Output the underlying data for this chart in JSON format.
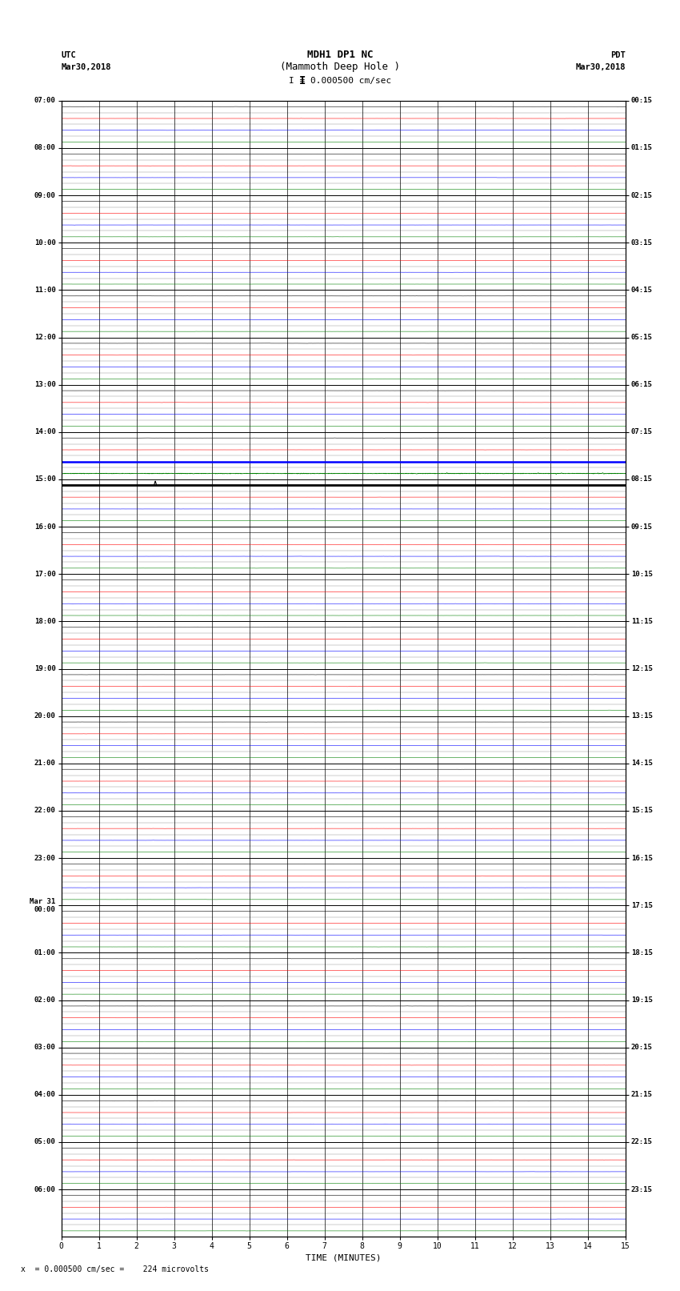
{
  "title_line1": "MDH1 DP1 NC",
  "title_line2": "(Mammoth Deep Hole )",
  "scale_label": "I = 0.000500 cm/sec",
  "left_timezone": "UTC",
  "left_date": "Mar30,2018",
  "right_timezone": "PDT",
  "right_date": "Mar30,2018",
  "xlabel": "TIME (MINUTES)",
  "footer": "x  = 0.000500 cm/sec =    224 microvolts",
  "left_times": [
    "07:00",
    "08:00",
    "09:00",
    "10:00",
    "11:00",
    "12:00",
    "13:00",
    "14:00",
    "15:00",
    "16:00",
    "17:00",
    "18:00",
    "19:00",
    "20:00",
    "21:00",
    "22:00",
    "23:00",
    "Mar 31\n00:00",
    "01:00",
    "02:00",
    "03:00",
    "04:00",
    "05:00",
    "06:00"
  ],
  "right_times": [
    "00:15",
    "01:15",
    "02:15",
    "03:15",
    "04:15",
    "05:15",
    "06:15",
    "07:15",
    "08:15",
    "09:15",
    "10:15",
    "11:15",
    "12:15",
    "13:15",
    "14:15",
    "15:15",
    "16:15",
    "17:15",
    "18:15",
    "19:15",
    "20:15",
    "21:15",
    "22:15",
    "23:15"
  ],
  "n_rows": 24,
  "sub_traces": 4,
  "minutes_per_row": 15,
  "bg_color": "#ffffff",
  "sub_colors": [
    "#000000",
    "#ff0000",
    "#0000ff",
    "#008000"
  ],
  "special_blue_row": 7,
  "special_black_row": 8,
  "noise_amplitude": 0.008,
  "spike_amplitude": 0.04
}
